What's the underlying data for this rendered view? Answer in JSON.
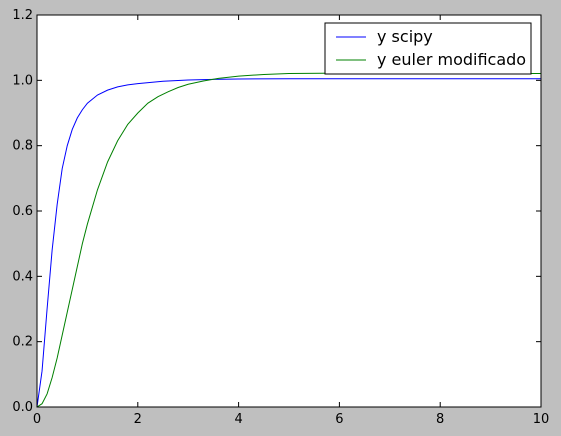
{
  "colors": {
    "figure_background": "#bfbfbf",
    "plot_background": "#ffffff",
    "axes_frame": "#000000"
  },
  "chart_data": {
    "type": "line",
    "title": "",
    "xlabel": "",
    "ylabel": "",
    "xlim": [
      0,
      10
    ],
    "ylim": [
      0,
      1.2
    ],
    "x_ticks": [
      0,
      2,
      4,
      6,
      8,
      10
    ],
    "y_ticks": [
      0.0,
      0.2,
      0.4,
      0.6,
      0.8,
      1.0,
      1.2
    ],
    "x_tick_labels": [
      "0",
      "2",
      "4",
      "6",
      "8",
      "10"
    ],
    "y_tick_labels": [
      "0.0",
      "0.2",
      "0.4",
      "0.6",
      "0.8",
      "1.0",
      "1.2"
    ],
    "grid": false,
    "legend_position": "top-right",
    "series": [
      {
        "name": "y scipy",
        "color": "#0000ff",
        "x": [
          0,
          0.1,
          0.2,
          0.3,
          0.4,
          0.5,
          0.6,
          0.7,
          0.8,
          0.9,
          1.0,
          1.2,
          1.4,
          1.6,
          1.8,
          2.0,
          2.5,
          3.0,
          3.5,
          4.0,
          5.0,
          6.0,
          7.0,
          8.0,
          9.0,
          10.0
        ],
        "y": [
          0.0,
          0.11,
          0.3,
          0.48,
          0.62,
          0.73,
          0.8,
          0.85,
          0.885,
          0.91,
          0.93,
          0.955,
          0.97,
          0.98,
          0.986,
          0.99,
          0.997,
          1.001,
          1.003,
          1.004,
          1.005,
          1.005,
          1.005,
          1.005,
          1.005,
          1.005
        ]
      },
      {
        "name": "y euler modificado",
        "color": "#008000",
        "x": [
          0,
          0.1,
          0.2,
          0.3,
          0.4,
          0.5,
          0.6,
          0.7,
          0.8,
          0.9,
          1.0,
          1.2,
          1.4,
          1.6,
          1.8,
          2.0,
          2.2,
          2.4,
          2.6,
          2.8,
          3.0,
          3.3,
          3.6,
          4.0,
          4.5,
          5.0,
          6.0,
          7.0,
          8.0,
          9.0,
          10.0
        ],
        "y": [
          0.0,
          0.01,
          0.04,
          0.09,
          0.15,
          0.22,
          0.29,
          0.36,
          0.43,
          0.5,
          0.56,
          0.665,
          0.75,
          0.815,
          0.865,
          0.9,
          0.93,
          0.95,
          0.965,
          0.978,
          0.988,
          0.998,
          1.006,
          1.013,
          1.018,
          1.021,
          1.022,
          1.022,
          1.022,
          1.021,
          1.021
        ]
      }
    ]
  }
}
